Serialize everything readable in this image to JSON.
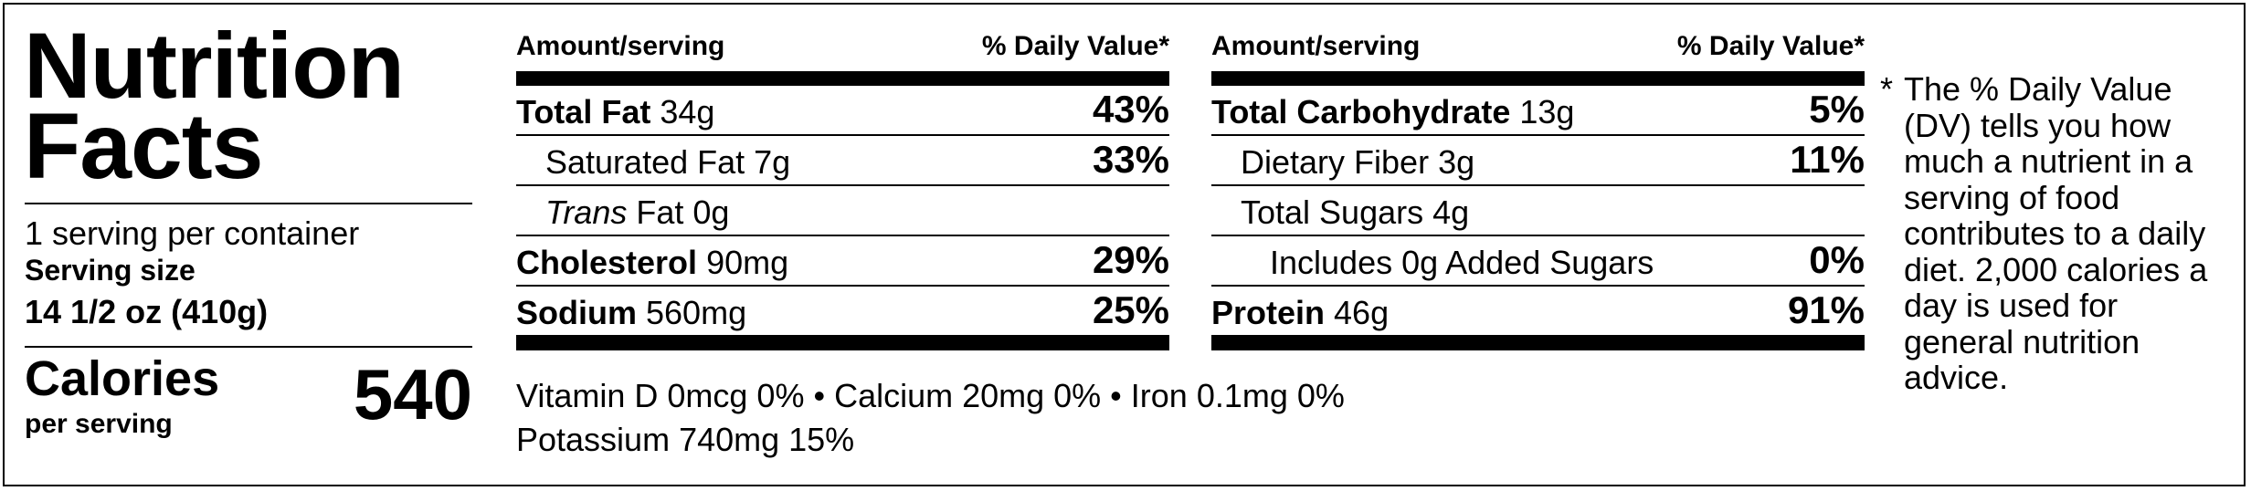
{
  "label": {
    "title_line1": "Nutrition",
    "title_line2": "Facts",
    "servings_per_container": "1 serving per container",
    "serving_size_label": "Serving size",
    "serving_size_value": "14 1/2 oz (410g)",
    "calories_label": "Calories",
    "per_serving": "per serving",
    "calories_value": "540"
  },
  "table_left": {
    "header_amount": "Amount/serving",
    "header_dv": "% Daily Value*",
    "rows": [
      {
        "name": "Total Fat",
        "amount": "34g",
        "dv": "43%"
      },
      {
        "name": "Saturated Fat",
        "amount": "7g",
        "dv": "33%"
      },
      {
        "name": "Trans",
        "name_rest": "Fat",
        "amount": "0g",
        "dv": ""
      },
      {
        "name": "Cholesterol",
        "amount": "90mg",
        "dv": "29%"
      },
      {
        "name": "Sodium",
        "amount": "560mg",
        "dv": "25%"
      }
    ]
  },
  "table_right": {
    "header_amount": "Amount/serving",
    "header_dv": "% Daily Value*",
    "rows": [
      {
        "name": "Total Carbohydrate",
        "amount": "13g",
        "dv": "5%"
      },
      {
        "name": "Dietary Fiber",
        "amount": "3g",
        "dv": "11%"
      },
      {
        "name": "Total Sugars",
        "amount": "4g",
        "dv": ""
      },
      {
        "name": "Includes 0g Added Sugars",
        "amount": "",
        "dv": "0%"
      },
      {
        "name": "Protein",
        "amount": "46g",
        "dv": "91%"
      }
    ]
  },
  "vitamins": {
    "line1": "Vitamin D 0mcg 0% • Calcium 20mg 0% • Iron 0.1mg 0%",
    "line2": "Potassium 740mg 15%"
  },
  "footnote": {
    "star": "*",
    "text": "The % Daily Value (DV) tells you how much a nutrient in a serving of food contributes to a daily diet. 2,000 calories a day is used for general nutrition advice."
  }
}
